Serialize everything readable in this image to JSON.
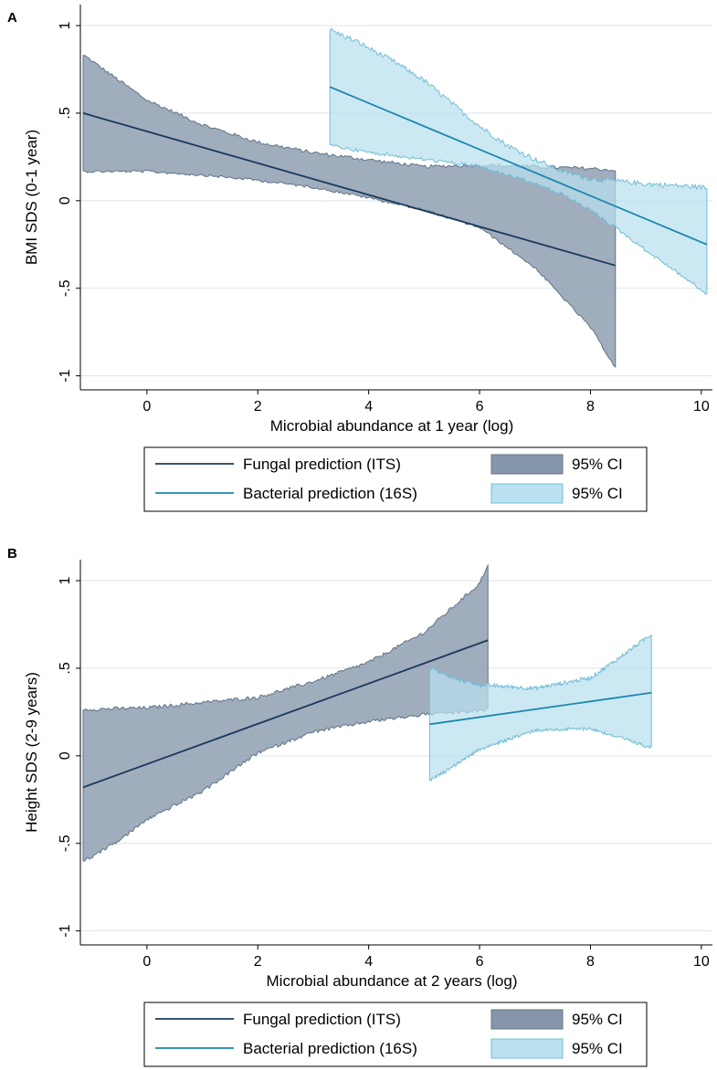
{
  "colors": {
    "fungal_line": "#1a3a5c",
    "fungal_band": "#8596ab",
    "fungal_band_edge": "#5f7488",
    "bacterial_line": "#1b87ae",
    "bacterial_band": "#b9e1ef",
    "bacterial_band_edge": "#74bdd6",
    "grid": "#dde5ea",
    "axis": "#000000"
  },
  "chart_data": [
    {
      "type": "line",
      "panel_label": "A",
      "xlabel": "Microbial abundance at 1 year (log)",
      "ylabel": "BMI SDS (0-1 year)",
      "xlim": [
        -1.2,
        10.2
      ],
      "ylim": [
        -1.08,
        1.12
      ],
      "x_ticks": [
        0,
        2,
        4,
        6,
        8,
        10
      ],
      "x_tick_labels": [
        "0",
        "2",
        "4",
        "6",
        "8",
        "10"
      ],
      "y_ticks": [
        -1,
        -0.5,
        0,
        0.5,
        1
      ],
      "y_tick_labels": [
        "-1",
        "-.5",
        "0",
        ".5",
        "1"
      ],
      "grid": true,
      "legend": [
        {
          "label": "Fungal prediction (ITS)",
          "kind": "line",
          "series": "fungal"
        },
        {
          "label": "95% CI",
          "kind": "band",
          "series": "fungal"
        },
        {
          "label": "Bacterial prediction (16S)",
          "kind": "line",
          "series": "bacterial"
        },
        {
          "label": "95% CI",
          "kind": "band",
          "series": "bacterial"
        }
      ],
      "series": [
        {
          "name": "Fungal prediction (ITS)",
          "key": "fungal",
          "line": {
            "x": [
              -1.15,
              8.45
            ],
            "y": [
              0.5,
              -0.37
            ]
          },
          "ci_upper": {
            "x": [
              -1.15,
              -0.8,
              0,
              1,
              2,
              3,
              4,
              5,
              6,
              7,
              8,
              8.45
            ],
            "y": [
              0.83,
              0.75,
              0.57,
              0.43,
              0.33,
              0.27,
              0.23,
              0.19,
              0.2,
              0.19,
              0.18,
              0.17
            ]
          },
          "ci_lower": {
            "x": [
              -1.15,
              0,
              1,
              2,
              3,
              4,
              5,
              6,
              7,
              8,
              8.45
            ],
            "y": [
              0.17,
              0.17,
              0.15,
              0.12,
              0.08,
              0.02,
              -0.05,
              -0.15,
              -0.38,
              -0.72,
              -0.95
            ]
          },
          "noise_upper": 0.02,
          "noise_lower": 0.015
        },
        {
          "name": "Bacterial prediction (16S)",
          "key": "bacterial",
          "line": {
            "x": [
              3.3,
              10.1
            ],
            "y": [
              0.65,
              -0.25
            ]
          },
          "ci_upper": {
            "x": [
              3.3,
              3.8,
              4.5,
              5,
              5.5,
              6,
              6.5,
              7,
              7.5,
              8,
              9,
              10.1
            ],
            "y": [
              0.97,
              0.9,
              0.78,
              0.68,
              0.55,
              0.42,
              0.31,
              0.23,
              0.16,
              0.12,
              0.09,
              0.07
            ]
          },
          "ci_lower": {
            "x": [
              3.3,
              4,
              5,
              6,
              6.5,
              7,
              7.5,
              8,
              8.5,
              9,
              9.5,
              10.1
            ],
            "y": [
              0.32,
              0.28,
              0.24,
              0.2,
              0.15,
              0.1,
              0.04,
              -0.05,
              -0.16,
              -0.28,
              -0.39,
              -0.53
            ]
          },
          "noise_upper": 0.03,
          "noise_lower": 0.02
        }
      ]
    },
    {
      "type": "line",
      "panel_label": "B",
      "xlabel": "Microbial abundance at 2 years (log)",
      "ylabel": "Height SDS (2-9 years)",
      "xlim": [
        -1.2,
        10.2
      ],
      "ylim": [
        -1.08,
        1.12
      ],
      "x_ticks": [
        0,
        2,
        4,
        6,
        8,
        10
      ],
      "x_tick_labels": [
        "0",
        "2",
        "4",
        "6",
        "8",
        "10"
      ],
      "y_ticks": [
        -1,
        -0.5,
        0,
        0.5,
        1
      ],
      "y_tick_labels": [
        "-1",
        "-.5",
        "0",
        ".5",
        "1"
      ],
      "grid": true,
      "legend": [
        {
          "label": "Fungal prediction (ITS)",
          "kind": "line",
          "series": "fungal"
        },
        {
          "label": "95% CI",
          "kind": "band",
          "series": "fungal"
        },
        {
          "label": "Bacterial prediction (16S)",
          "kind": "line",
          "series": "bacterial"
        },
        {
          "label": "95% CI",
          "kind": "band",
          "series": "bacterial"
        }
      ],
      "series": [
        {
          "name": "Fungal prediction (ITS)",
          "key": "fungal",
          "line": {
            "x": [
              -1.15,
              6.15
            ],
            "y": [
              -0.18,
              0.66
            ]
          },
          "ci_upper": {
            "x": [
              -1.15,
              0,
              1,
              2,
              3,
              4,
              5,
              6,
              6.15
            ],
            "y": [
              0.26,
              0.27,
              0.3,
              0.33,
              0.42,
              0.53,
              0.7,
              0.98,
              1.09
            ]
          },
          "ci_lower": {
            "x": [
              -1.15,
              -0.5,
              0,
              1,
              2,
              3,
              4,
              5,
              6,
              6.15
            ],
            "y": [
              -0.6,
              -0.48,
              -0.36,
              -0.2,
              0.02,
              0.14,
              0.2,
              0.24,
              0.26,
              0.27
            ]
          },
          "noise_upper": 0.02,
          "noise_lower": 0.02
        },
        {
          "name": "Bacterial prediction (16S)",
          "key": "bacterial",
          "line": {
            "x": [
              5.1,
              9.1
            ],
            "y": [
              0.18,
              0.36
            ]
          },
          "ci_upper": {
            "x": [
              5.1,
              5.5,
              6,
              7,
              8,
              8.5,
              9.1
            ],
            "y": [
              0.5,
              0.44,
              0.4,
              0.38,
              0.44,
              0.55,
              0.69
            ]
          },
          "ci_lower": {
            "x": [
              5.1,
              5.5,
              6,
              7,
              8,
              8.5,
              9.1
            ],
            "y": [
              -0.14,
              -0.06,
              0.04,
              0.15,
              0.16,
              0.11,
              0.05
            ]
          },
          "noise_upper": 0.025,
          "noise_lower": 0.02
        }
      ]
    }
  ]
}
